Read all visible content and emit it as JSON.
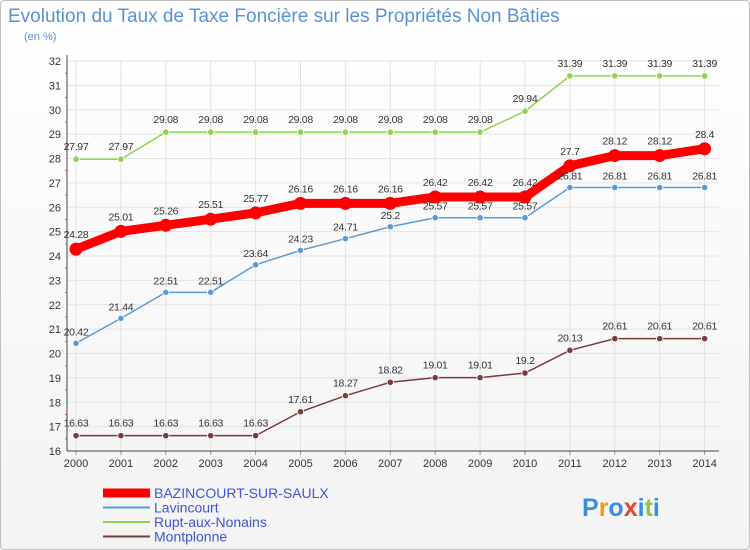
{
  "chart_data": {
    "type": "line",
    "title": "Evolution du Taux de Taxe Foncière sur les Propriétés Non Bâties",
    "subtitle": "(en %)",
    "xlabel": "",
    "ylabel": "",
    "x": [
      "2000",
      "2001",
      "2002",
      "2003",
      "2004",
      "2005",
      "2006",
      "2007",
      "2008",
      "2009",
      "2010",
      "2011",
      "2012",
      "2013",
      "2014"
    ],
    "ylim": [
      16,
      32
    ],
    "yticks": [
      16,
      17,
      18,
      19,
      20,
      21,
      22,
      23,
      24,
      25,
      26,
      27,
      28,
      29,
      30,
      31,
      32
    ],
    "grid": true,
    "legend_position": "bottom-left",
    "series": [
      {
        "name": "BAZINCOURT-SUR-SAULX",
        "color": "#ff0000",
        "emphasis": true,
        "values": [
          24.28,
          25.01,
          25.26,
          25.51,
          25.77,
          26.16,
          26.16,
          26.16,
          26.42,
          26.42,
          26.42,
          27.7,
          28.12,
          28.12,
          28.4
        ],
        "labels": [
          "24.28",
          "25.01",
          "25.26",
          "25.51",
          "25.77",
          "26.16",
          "26.16",
          "26.16",
          "26.42",
          "26.42",
          "26.42",
          "27.7",
          "28.12",
          "28.12",
          "28.4"
        ]
      },
      {
        "name": "Lavincourt",
        "color": "#5b9bd5",
        "emphasis": false,
        "values": [
          20.42,
          21.44,
          22.51,
          22.51,
          23.64,
          24.23,
          24.71,
          25.2,
          25.57,
          25.57,
          25.57,
          26.81,
          26.81,
          26.81,
          26.81
        ],
        "labels": [
          "20.42",
          "21.44",
          "22.51",
          "22.51",
          "23.64",
          "24.23",
          "24.71",
          "25.2",
          "25.57",
          "25.57",
          "25.57",
          "26.81",
          "26.81",
          "26.81",
          "26.81"
        ]
      },
      {
        "name": "Rupt-aux-Nonains",
        "color": "#8fd44a",
        "emphasis": false,
        "values": [
          27.97,
          27.97,
          29.08,
          29.08,
          29.08,
          29.08,
          29.08,
          29.08,
          29.08,
          29.08,
          29.94,
          31.39,
          31.39,
          31.39,
          31.39
        ],
        "labels": [
          "27.97",
          "27.97",
          "29.08",
          "29.08",
          "29.08",
          "29.08",
          "29.08",
          "29.08",
          "29.08",
          "29.08",
          "29.94",
          "31.39",
          "31.39",
          "31.39",
          "31.39"
        ]
      },
      {
        "name": "Montplonne",
        "color": "#7a3b3b",
        "emphasis": false,
        "values": [
          16.63,
          16.63,
          16.63,
          16.63,
          16.63,
          17.61,
          18.27,
          18.82,
          19.01,
          19.01,
          19.2,
          20.13,
          20.61,
          20.61,
          20.61
        ],
        "labels": [
          "16.63",
          "16.63",
          "16.63",
          "16.63",
          "16.63",
          "17.61",
          "18.27",
          "18.82",
          "19.01",
          "19.01",
          "19.2",
          "20.13",
          "20.61",
          "20.61",
          "20.61"
        ]
      }
    ]
  },
  "logo": {
    "letters": [
      "P",
      "r",
      "o",
      "x",
      "i",
      "t",
      "i"
    ],
    "colors": [
      "#3a8de0",
      "#f39a1e",
      "#3a8de0",
      "#e8452c",
      "#3a8de0",
      "#8cc63f",
      "#3a8de0"
    ]
  }
}
